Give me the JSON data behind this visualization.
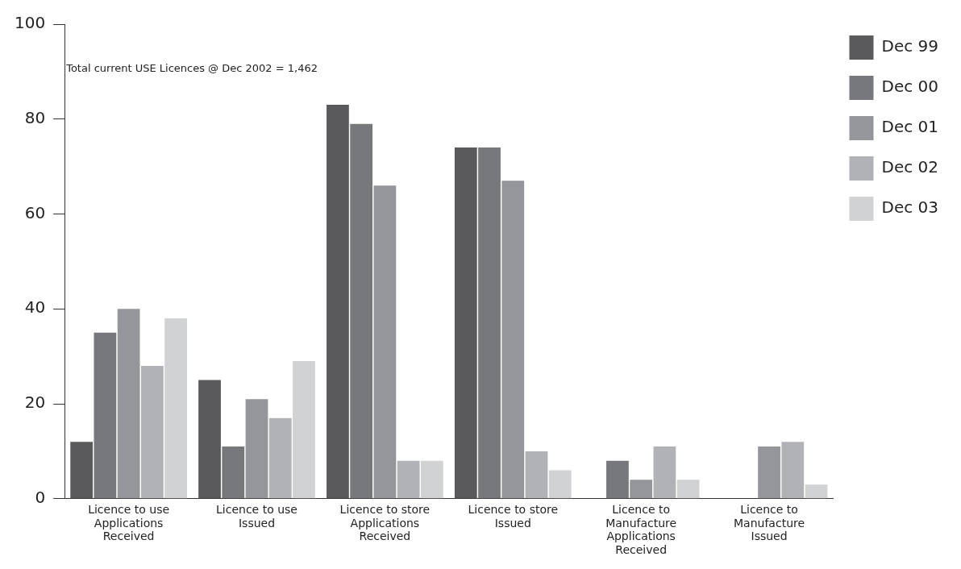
{
  "chart_data": {
    "type": "bar",
    "categories": [
      "Licence to use Applications Received",
      "Licence to use Issued",
      "Licence to store Applications Received",
      "Licence to store Issued",
      "Licence to Manufacture Applications Received",
      "Licence to Manufacture Issued"
    ],
    "series": [
      {
        "name": "Dec 99",
        "color": "#5a5a5c",
        "values": [
          12,
          25,
          83,
          74,
          null,
          null
        ]
      },
      {
        "name": "Dec 00",
        "color": "#77787c",
        "values": [
          35,
          11,
          79,
          74,
          8,
          null
        ]
      },
      {
        "name": "Dec 01",
        "color": "#95969a",
        "values": [
          40,
          21,
          66,
          67,
          4,
          11
        ]
      },
      {
        "name": "Dec 02",
        "color": "#b1b2b5",
        "values": [
          28,
          17,
          8,
          10,
          11,
          12
        ]
      },
      {
        "name": "Dec 03",
        "color": "#d1d2d4",
        "values": [
          38,
          29,
          8,
          6,
          4,
          3
        ]
      }
    ],
    "ylim": [
      0,
      100
    ],
    "yticks": [
      0,
      20,
      40,
      60,
      80,
      100
    ],
    "grid": false,
    "legend": "top right",
    "annotations": [
      "Total current USE Licences @ Dec 2002 = 1,462"
    ]
  }
}
